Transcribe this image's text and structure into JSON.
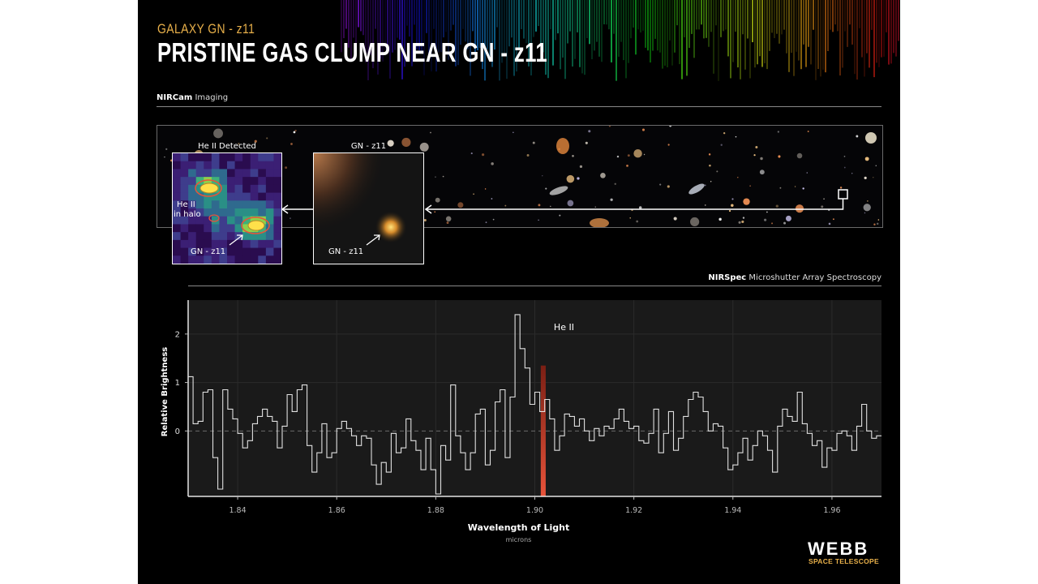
{
  "header": {
    "kicker": "GALAXY GN - z11",
    "title": "PRISTINE GAS CLUMP NEAR GN - z11"
  },
  "imaging": {
    "label_bold": "NIRCam",
    "label_rest": " Imaging",
    "inset_heii": {
      "title": "He II Detected",
      "halo_label_1": "He II",
      "halo_label_2": "in halo",
      "galaxy_label": "GN - z11"
    },
    "inset_galaxy": {
      "title": "GN - z11",
      "galaxy_label": "GN - z11"
    }
  },
  "spectroscopy": {
    "label_bold": "NIRSpec",
    "label_rest": " Microshutter Array Spectroscopy"
  },
  "logo": {
    "name": "WEBB",
    "subtitle": "SPACE TELESCOPE"
  },
  "colors": {
    "accent": "#e8b04a",
    "line": "#e0e0e0",
    "highlight": "#e8533a",
    "panel": "#1a1a1a"
  },
  "chart_data": {
    "type": "line",
    "step": true,
    "xlabel": "Wavelength of Light",
    "xunit": "microns",
    "ylabel": "Relative Brightness",
    "xlim": [
      1.83,
      1.97
    ],
    "ylim": [
      -1.35,
      2.7
    ],
    "xticks": [
      1.84,
      1.86,
      1.88,
      1.9,
      1.92,
      1.94,
      1.96
    ],
    "yticks": [
      0,
      1,
      2
    ],
    "annotation": {
      "text": "He II",
      "x": 1.9022,
      "y": 2.15
    },
    "highlight": {
      "x_start": 1.9012,
      "x_end": 1.9022,
      "y_top": 1.35
    },
    "x": [
      1.83,
      1.831,
      1.832,
      1.833,
      1.834,
      1.835,
      1.836,
      1.837,
      1.838,
      1.839,
      1.84,
      1.841,
      1.842,
      1.843,
      1.844,
      1.845,
      1.846,
      1.847,
      1.848,
      1.849,
      1.85,
      1.851,
      1.852,
      1.853,
      1.854,
      1.855,
      1.856,
      1.857,
      1.858,
      1.859,
      1.86,
      1.861,
      1.862,
      1.863,
      1.864,
      1.865,
      1.866,
      1.867,
      1.868,
      1.869,
      1.87,
      1.871,
      1.872,
      1.873,
      1.874,
      1.875,
      1.876,
      1.877,
      1.878,
      1.879,
      1.88,
      1.881,
      1.882,
      1.883,
      1.884,
      1.885,
      1.886,
      1.887,
      1.888,
      1.889,
      1.89,
      1.891,
      1.892,
      1.893,
      1.894,
      1.895,
      1.896,
      1.897,
      1.898,
      1.899,
      1.9,
      1.901,
      1.902,
      1.903,
      1.904,
      1.905,
      1.906,
      1.907,
      1.908,
      1.909,
      1.91,
      1.911,
      1.912,
      1.913,
      1.914,
      1.915,
      1.916,
      1.917,
      1.918,
      1.919,
      1.92,
      1.921,
      1.922,
      1.923,
      1.924,
      1.925,
      1.926,
      1.927,
      1.928,
      1.929,
      1.93,
      1.931,
      1.932,
      1.933,
      1.934,
      1.935,
      1.936,
      1.937,
      1.938,
      1.939,
      1.94,
      1.941,
      1.942,
      1.943,
      1.944,
      1.945,
      1.946,
      1.947,
      1.948,
      1.949,
      1.95,
      1.951,
      1.952,
      1.953,
      1.954,
      1.955,
      1.956,
      1.957,
      1.958,
      1.959,
      1.96,
      1.961,
      1.962,
      1.963,
      1.964,
      1.965,
      1.966,
      1.967,
      1.968,
      1.969
    ],
    "y": [
      1.12,
      0.15,
      0.2,
      0.8,
      0.85,
      -0.55,
      -1.2,
      0.85,
      0.45,
      0.25,
      -0.05,
      -0.35,
      -0.2,
      0.15,
      0.3,
      0.45,
      0.3,
      0.2,
      -0.35,
      0.1,
      0.75,
      0.4,
      0.85,
      0.95,
      -0.3,
      -0.85,
      -0.45,
      0.15,
      -0.55,
      -0.45,
      0.05,
      0.2,
      0.05,
      -0.1,
      -0.3,
      -0.1,
      -0.15,
      -0.7,
      -1.1,
      -0.65,
      -0.85,
      -0.05,
      -0.45,
      -0.35,
      0.25,
      -0.2,
      -0.4,
      -0.8,
      -0.15,
      -0.8,
      -1.3,
      -0.3,
      -0.6,
      0.95,
      -0.1,
      -0.45,
      -0.8,
      -0.45,
      0.35,
      0.45,
      -0.7,
      -0.4,
      0.6,
      0.85,
      -0.55,
      0.7,
      2.4,
      1.7,
      1.3,
      0.55,
      0.8,
      0.4,
      0.65,
      0.25,
      -0.4,
      -0.1,
      0.35,
      0.3,
      0.1,
      0.25,
      0.0,
      -0.2,
      0.05,
      -0.1,
      0.1,
      0.05,
      0.25,
      0.45,
      0.2,
      0.05,
      0.1,
      -0.2,
      -0.25,
      -0.05,
      0.45,
      -0.45,
      -0.05,
      0.4,
      -0.4,
      -0.15,
      0.3,
      0.65,
      0.8,
      0.7,
      0.4,
      0.0,
      0.15,
      0.1,
      -0.35,
      -0.8,
      -0.7,
      -0.45,
      -0.15,
      -0.6,
      -0.3,
      0.0,
      -0.1,
      -0.4,
      -0.85,
      0.1,
      0.45,
      0.3,
      0.2,
      0.8,
      0.15,
      -0.05,
      -0.3,
      -0.2,
      -0.75,
      -0.35,
      -0.4,
      -0.05,
      0.0,
      -0.1,
      -0.4,
      0.1,
      0.55,
      0.0,
      -0.15,
      -0.1
    ]
  }
}
